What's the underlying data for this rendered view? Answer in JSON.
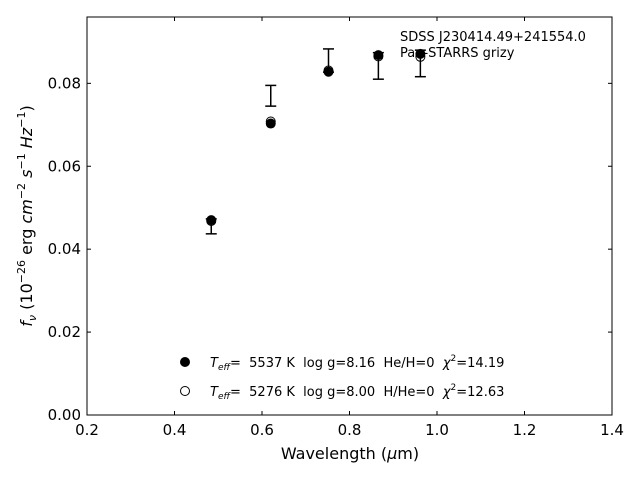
{
  "chart_data": {
    "type": "scatter",
    "xlabel": "Wavelength (μm)",
    "ylabel": "f_ν (10^-26 erg cm^-2 s^-1 Hz^-1)",
    "xlim": [
      0.2,
      1.4
    ],
    "ylim": [
      0.0,
      0.096
    ],
    "xticks": [
      0.2,
      0.4,
      0.6,
      0.8,
      1.0,
      1.2,
      1.4
    ],
    "xtick_labels": [
      "0.2",
      "0.4",
      "0.6",
      "0.8",
      "1.0",
      "1.2",
      "1.4"
    ],
    "yticks": [
      0.0,
      0.02,
      0.04,
      0.06,
      0.08
    ],
    "ytick_labels": [
      "0.00",
      "0.02",
      "0.04",
      "0.06",
      "0.08"
    ],
    "annotation": {
      "line1": "SDSS J230414.49+241554.0",
      "line2": "Pan-STARRS grizy"
    },
    "observed": {
      "x": [
        0.484,
        0.62,
        0.752,
        0.866,
        0.962
      ],
      "y": [
        0.0455,
        0.077,
        0.0855,
        0.0842,
        0.0848
      ],
      "yerr": [
        0.0018,
        0.0025,
        0.0028,
        0.0032,
        0.0032
      ]
    },
    "series": [
      {
        "marker": "filled-circle",
        "x": [
          0.484,
          0.62,
          0.752,
          0.866,
          0.962
        ],
        "y": [
          0.047,
          0.0703,
          0.0828,
          0.0868,
          0.0871
        ]
      },
      {
        "marker": "open-circle",
        "x": [
          0.484,
          0.62,
          0.752,
          0.866,
          0.962
        ],
        "y": [
          0.0468,
          0.0708,
          0.0831,
          0.0865,
          0.0864
        ]
      }
    ],
    "legend": {
      "placement": "lower-center",
      "entries": [
        {
          "marker": "filled-circle",
          "teff_label": "T",
          "teff_sub": "eff",
          "rest": "=  5537 K  log g=8.16  He/H=0  ",
          "chi_label": "χ",
          "chi_sup": "2",
          "chi_value": "=14.19"
        },
        {
          "marker": "open-circle",
          "teff_label": "T",
          "teff_sub": "eff",
          "rest": "=  5276 K  log g=8.00  H/He=0  ",
          "chi_label": "χ",
          "chi_sup": "2",
          "chi_value": "=12.63"
        }
      ]
    }
  }
}
